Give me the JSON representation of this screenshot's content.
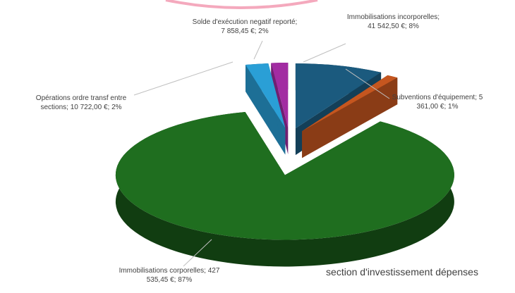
{
  "chart_data": {
    "type": "pie3d",
    "title": "section d'investissement dépenses",
    "categories": [
      "Immobilisations incorporelles",
      "Subventions d'équipement",
      "Immobilisations corporelles",
      "Opérations ordre transf entre sections",
      "Solde d'exécution negatif reporté"
    ],
    "values": [
      41542.5,
      5361,
      427535.45,
      10722,
      7858.45
    ],
    "data_labels": [
      "Immobilisations incorporelles; 41 542,50 €; 8%",
      "Subventions d'équipement; 5 361,00 €; 1%",
      "Immobilisations corporelles; 427 535,45 €; 87%",
      "Opérations ordre transf entre sections; 10 722,00 €; 2%",
      "Solde d'exécution negatif reporté; 7 858,45 €; 2%"
    ],
    "colors": [
      "#1b5a7e",
      "#c5561f",
      "#1f6e1f",
      "#2a9fd6",
      "#a22ca2"
    ]
  }
}
